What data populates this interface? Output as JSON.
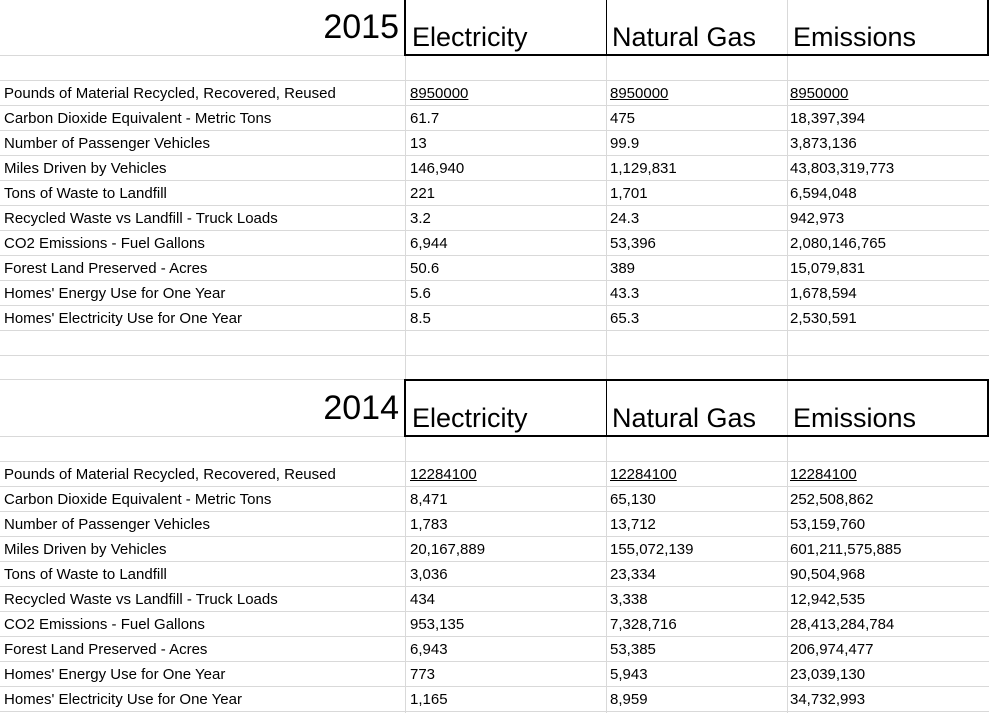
{
  "columns": [
    "Electricity",
    "Natural Gas",
    "Emissions"
  ],
  "sections": [
    {
      "year": "2015",
      "rows": [
        {
          "label": "Pounds of Material Recycled, Recovered, Reused",
          "values": [
            "8950000",
            "8950000",
            "8950000"
          ]
        },
        {
          "label": "Carbon Dioxide Equivalent - Metric Tons",
          "values": [
            "61.7",
            "475",
            "18,397,394"
          ]
        },
        {
          "label": "Number of Passenger Vehicles",
          "values": [
            "13",
            "99.9",
            "3,873,136"
          ]
        },
        {
          "label": "Miles Driven by Vehicles",
          "values": [
            "146,940",
            "1,129,831",
            "43,803,319,773"
          ]
        },
        {
          "label": "Tons of Waste to Landfill",
          "values": [
            "221",
            "1,701",
            "6,594,048"
          ]
        },
        {
          "label": "Recycled Waste vs Landfill - Truck Loads",
          "values": [
            "3.2",
            "24.3",
            "942,973"
          ]
        },
        {
          "label": "CO2 Emissions - Fuel Gallons",
          "values": [
            "6,944",
            "53,396",
            "2,080,146,765"
          ]
        },
        {
          "label": "Forest Land Preserved - Acres",
          "values": [
            "50.6",
            "389",
            "15,079,831"
          ]
        },
        {
          "label": "Homes' Energy Use for One Year",
          "values": [
            "5.6",
            "43.3",
            "1,678,594"
          ]
        },
        {
          "label": "Homes' Electricity Use for One Year",
          "values": [
            "8.5",
            "65.3",
            "2,530,591"
          ]
        }
      ]
    },
    {
      "year": "2014",
      "rows": [
        {
          "label": "Pounds of Material Recycled, Recovered, Reused",
          "values": [
            "12284100",
            "12284100",
            "12284100"
          ]
        },
        {
          "label": "Carbon Dioxide Equivalent - Metric Tons",
          "values": [
            "8,471",
            "65,130",
            "252,508,862"
          ]
        },
        {
          "label": "Number of Passenger Vehicles",
          "values": [
            "1,783",
            "13,712",
            "53,159,760"
          ]
        },
        {
          "label": "Miles Driven by Vehicles",
          "values": [
            "20,167,889",
            "155,072,139",
            "601,211,575,885"
          ]
        },
        {
          "label": "Tons of Waste to Landfill",
          "values": [
            "3,036",
            "23,334",
            "90,504,968"
          ]
        },
        {
          "label": "Recycled Waste vs Landfill - Truck Loads",
          "values": [
            "434",
            "3,338",
            "12,942,535"
          ]
        },
        {
          "label": "CO2 Emissions - Fuel Gallons",
          "values": [
            "953,135",
            "7,328,716",
            "28,413,284,784"
          ]
        },
        {
          "label": "Forest Land Preserved - Acres",
          "values": [
            "6,943",
            "53,385",
            "206,974,477"
          ]
        },
        {
          "label": "Homes' Energy Use for One Year",
          "values": [
            "773",
            "5,943",
            "23,039,130"
          ]
        },
        {
          "label": "Homes' Electricity Use for One Year",
          "values": [
            "1,165",
            "8,959",
            "34,732,993"
          ]
        }
      ]
    }
  ]
}
